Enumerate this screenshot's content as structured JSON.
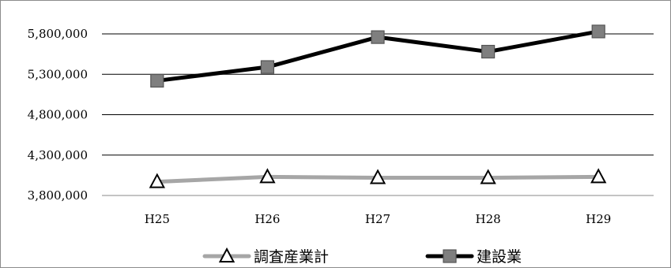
{
  "chart_data": {
    "type": "line",
    "categories": [
      "H25",
      "H26",
      "H27",
      "H28",
      "H29"
    ],
    "series": [
      {
        "name": "建設業",
        "values": [
          5220000,
          5390000,
          5760000,
          5580000,
          5830000
        ],
        "color": "#000000",
        "marker": "square",
        "marker_fill": "#7f7f7f"
      },
      {
        "name": "調査産業計",
        "values": [
          3970000,
          4030000,
          4020000,
          4020000,
          4030000
        ],
        "color": "#a6a6a6",
        "marker": "triangle",
        "marker_fill": "#ffffff"
      }
    ],
    "yticks": [
      3800000,
      4300000,
      4800000,
      5300000,
      5800000
    ],
    "ytick_labels": [
      "3,800,000",
      "4,300,000",
      "4,800,000",
      "5,300,000",
      "5,800,000"
    ],
    "ylim": [
      3800000,
      6150000
    ],
    "title": "",
    "xlabel": "",
    "ylabel": "",
    "grid": true,
    "legend_position": "bottom",
    "legend_order": [
      "調査産業計",
      "建設業"
    ]
  }
}
